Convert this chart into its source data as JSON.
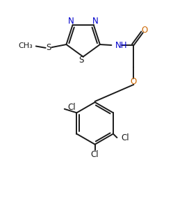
{
  "bg_color": "#ffffff",
  "line_color": "#1a1a1a",
  "n_color": "#0000cc",
  "o_color": "#cc6600",
  "s_color": "#1a1a1a",
  "line_width": 1.4,
  "figsize": [
    2.49,
    3.21
  ],
  "dpi": 100,
  "xlim": [
    0,
    10
  ],
  "ylim": [
    0,
    13
  ]
}
